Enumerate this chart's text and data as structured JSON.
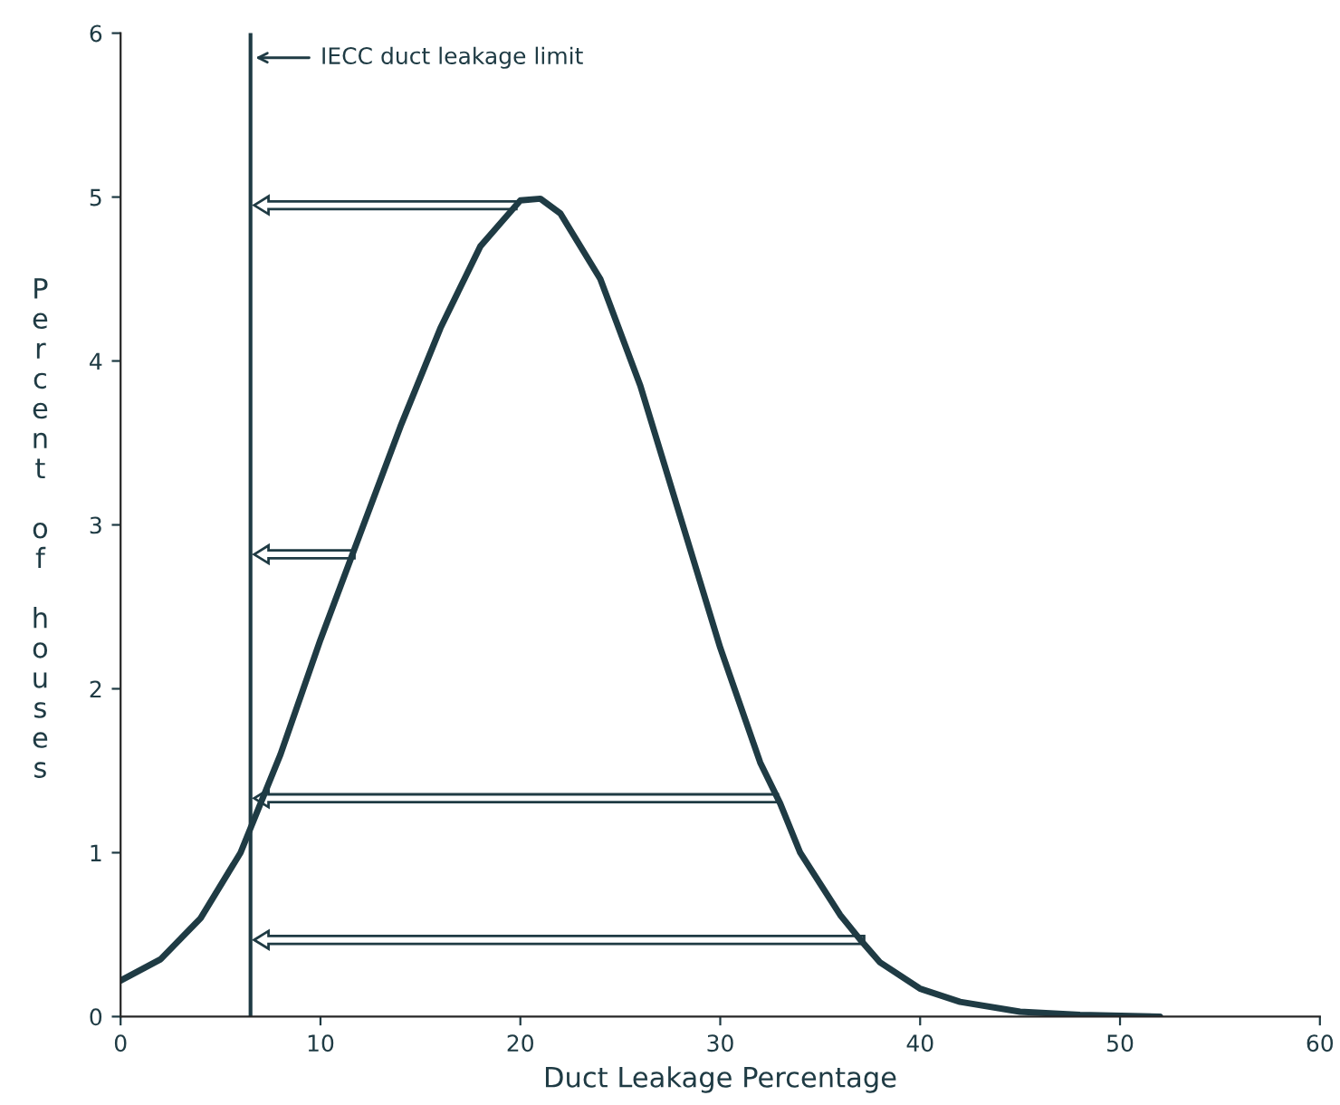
{
  "chart_data": {
    "type": "line",
    "xlabel": "Duct Leakage Percentage",
    "ylabel": "Percent of houses",
    "x": [
      0,
      2,
      4,
      6,
      8,
      10,
      12,
      14,
      16,
      18,
      20,
      21,
      22,
      24,
      26,
      28,
      30,
      32,
      33,
      34,
      36,
      37,
      38,
      40,
      42,
      45,
      48,
      52
    ],
    "series": [
      {
        "color": "#1f3b44",
        "values": [
          0.22,
          0.35,
          0.6,
          1.0,
          1.6,
          2.3,
          2.95,
          3.6,
          4.2,
          4.7,
          4.98,
          4.99,
          4.9,
          4.5,
          3.85,
          3.05,
          2.25,
          1.55,
          1.3,
          1.0,
          0.62,
          0.47,
          0.33,
          0.17,
          0.09,
          0.03,
          0.01,
          0.0
        ]
      }
    ],
    "xlim": [
      0,
      60
    ],
    "xticks": [
      0,
      10,
      20,
      30,
      40,
      50,
      60
    ],
    "ylim": [
      0,
      6
    ],
    "yticks": [
      0,
      1,
      2,
      3,
      4,
      5,
      6
    ],
    "grid": false,
    "legend": false,
    "marker": "none",
    "line_style": "solid",
    "ref_lines": [
      {
        "axis": "x",
        "value": 6.5,
        "label": "IECC duct leakage limit",
        "color": "#1f3b44"
      }
    ]
  }
}
